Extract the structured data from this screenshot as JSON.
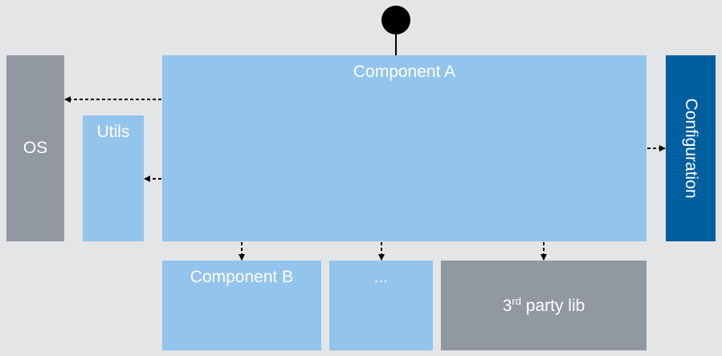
{
  "nodes": {
    "component_a": "Component A",
    "os": "OS",
    "utils": "Utils",
    "configuration": "Configuration",
    "component_b": "Component B",
    "ellipsis": "...",
    "third_party": {
      "prefix": "3",
      "superscript": "rd",
      "suffix": " party lib"
    }
  },
  "colors": {
    "background": "#e4e5e7",
    "component_light": "#93c4eb",
    "external_gray": "#9298a2",
    "configuration_blue": "#005f9e",
    "arrow": "#000000"
  }
}
